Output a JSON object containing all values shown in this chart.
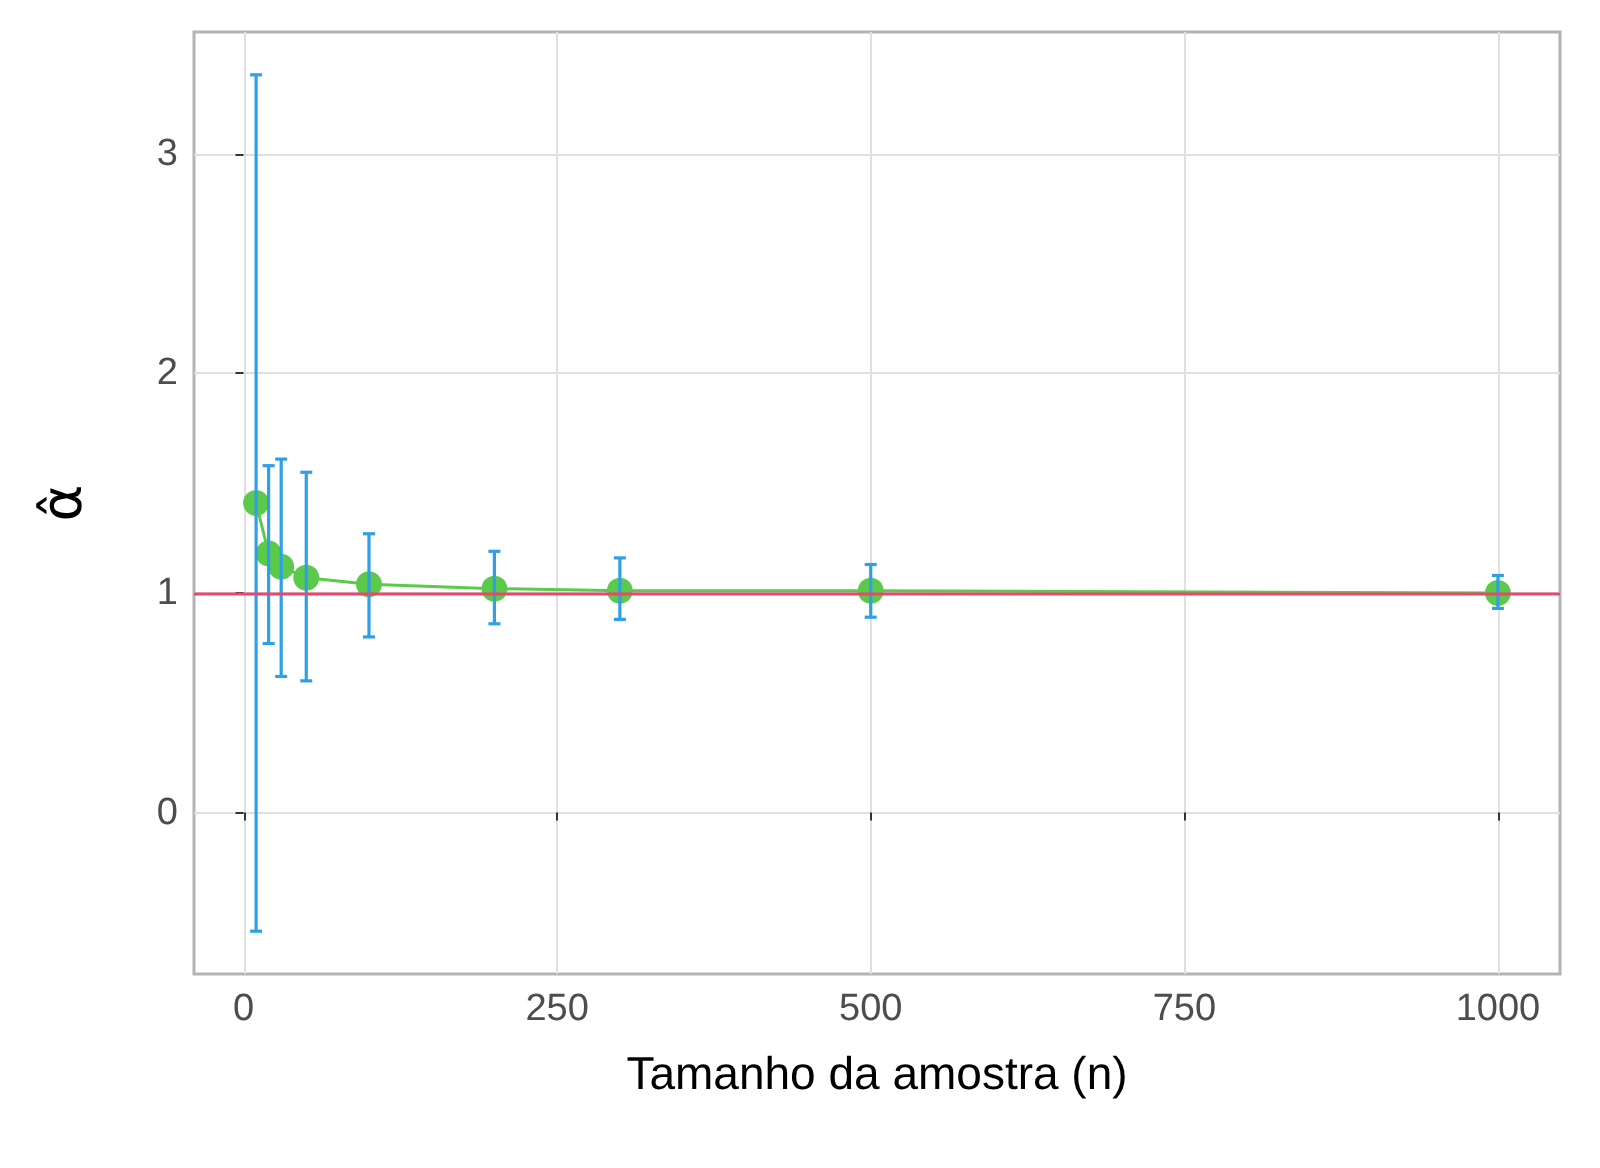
{
  "chart_data": {
    "type": "line",
    "xlabel": "Tamanho da amostra (n)",
    "ylabel": "α̂",
    "x": [
      10,
      20,
      30,
      50,
      100,
      200,
      300,
      500,
      1000
    ],
    "series": [
      {
        "color": "#5bc94a",
        "values": [
          1.41,
          1.18,
          1.12,
          1.07,
          1.04,
          1.02,
          1.01,
          1.01,
          1.0
        ],
        "errors": [
          [
            -0.54,
            3.36
          ],
          [
            0.77,
            1.58
          ],
          [
            0.62,
            1.61
          ],
          [
            0.6,
            1.55
          ],
          [
            0.8,
            1.27
          ],
          [
            0.86,
            1.19
          ],
          [
            0.88,
            1.16
          ],
          [
            0.89,
            1.13
          ],
          [
            0.93,
            1.08
          ]
        ]
      }
    ],
    "marker": "circle",
    "line_style": "solid",
    "xlim": [
      -39.5,
      1049.5
    ],
    "xticks": [
      0,
      250,
      500,
      750,
      1000
    ],
    "ylim": [
      -0.735,
      3.555
    ],
    "yticks": [
      0,
      1,
      2,
      3
    ],
    "ref_lines": [
      {
        "axis": "y",
        "value": 1,
        "color": "#e8486e"
      }
    ],
    "grid": true
  }
}
